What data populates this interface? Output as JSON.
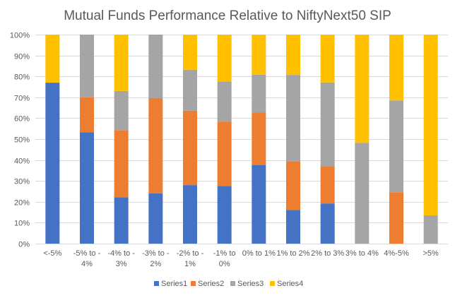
{
  "chart_data": {
    "type": "bar",
    "stacked": "percent",
    "title": "Mutual Funds Performance Relative to NiftyNext50 SIP",
    "xlabel": "",
    "ylabel": "",
    "ylim": [
      0,
      100
    ],
    "yticks": [
      "0%",
      "10%",
      "20%",
      "30%",
      "40%",
      "50%",
      "60%",
      "70%",
      "80%",
      "90%",
      "100%"
    ],
    "grid": true,
    "legend_position": "bottom",
    "categories": [
      [
        "<-5%"
      ],
      [
        "-5% to -",
        "4%"
      ],
      [
        "-4% to -",
        "3%"
      ],
      [
        "-3% to -",
        "2%"
      ],
      [
        "-2% to -",
        "1%"
      ],
      [
        "-1% to",
        "0%"
      ],
      [
        "0% to  1%"
      ],
      [
        "1% to 2%"
      ],
      [
        "2% to 3%"
      ],
      [
        "3% to 4%"
      ],
      [
        "4%-5%"
      ],
      [
        ">5%"
      ]
    ],
    "series": [
      {
        "name": "Series1",
        "color": "#4472c4",
        "values": [
          77,
          53.3,
          22.2,
          24,
          28,
          27.6,
          37.5,
          16.1,
          19.2,
          0,
          0,
          0
        ]
      },
      {
        "name": "Series2",
        "color": "#ed7d31",
        "values": [
          0,
          16.7,
          32.1,
          45.6,
          35.6,
          30.8,
          25.3,
          23.3,
          17.9,
          0,
          24.6,
          0
        ]
      },
      {
        "name": "Series3",
        "color": "#a5a5a5",
        "values": [
          0,
          30,
          18.7,
          30.4,
          19.6,
          19.2,
          18,
          41.3,
          40,
          48.2,
          43.9,
          13.5
        ]
      },
      {
        "name": "Series4",
        "color": "#ffc000",
        "values": [
          23,
          0,
          27,
          0,
          16.8,
          22.4,
          19.2,
          19.3,
          22.9,
          51.8,
          31.5,
          86.5
        ]
      }
    ]
  }
}
